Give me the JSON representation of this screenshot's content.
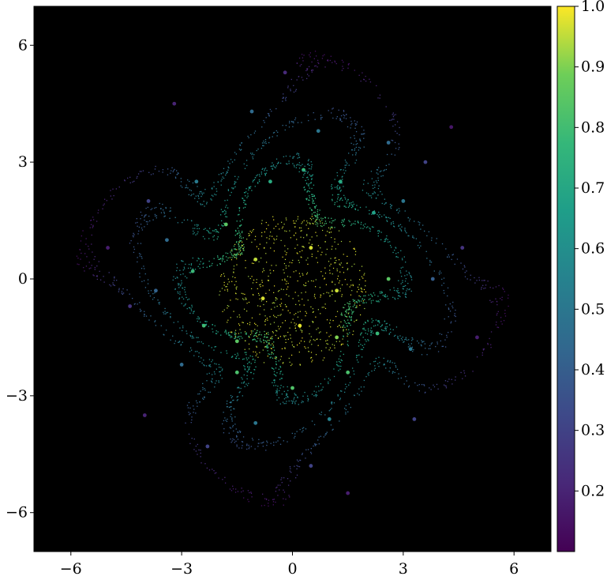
{
  "chart_data": {
    "type": "scatter",
    "title": "",
    "xlabel": "",
    "ylabel": "",
    "xlim": [
      -7,
      7
    ],
    "ylim": [
      -7,
      7
    ],
    "grid": false,
    "background_color": "#000000",
    "colormap": "viridis",
    "colorbar": {
      "min": 0.1,
      "max": 1.0,
      "ticks": [
        0.2,
        0.3,
        0.4,
        0.5,
        0.6,
        0.7,
        0.8,
        0.9,
        1.0
      ],
      "tick_labels": [
        "0.2",
        "0.3",
        "0.4",
        "0.5",
        "0.6",
        "0.7",
        "0.8",
        "0.9",
        "1.0"
      ]
    },
    "x_ticks": [
      -6,
      -3,
      0,
      3,
      6
    ],
    "x_tick_labels": [
      "−6",
      "−3",
      "0",
      "3",
      "6"
    ],
    "y_ticks": [
      -6,
      -3,
      0,
      3,
      6
    ],
    "y_tick_labels": [
      "−6",
      "−3",
      "0",
      "3",
      "6"
    ],
    "series": [
      {
        "points": [
          {
            "x": -0.6,
            "y": 2.5,
            "c": 0.72
          },
          {
            "x": 0.3,
            "y": 2.8,
            "c": 0.78
          },
          {
            "x": 1.3,
            "y": 2.5,
            "c": 0.72
          },
          {
            "x": 2.2,
            "y": 1.7,
            "c": 0.68
          },
          {
            "x": 2.6,
            "y": 0.0,
            "c": 0.85
          },
          {
            "x": 2.3,
            "y": -1.4,
            "c": 0.78
          },
          {
            "x": 1.5,
            "y": -2.4,
            "c": 0.82
          },
          {
            "x": 0.0,
            "y": -2.8,
            "c": 0.83
          },
          {
            "x": -1.5,
            "y": -2.4,
            "c": 0.82
          },
          {
            "x": -2.4,
            "y": -1.2,
            "c": 0.8
          },
          {
            "x": -2.7,
            "y": 0.2,
            "c": 0.8
          },
          {
            "x": -1.8,
            "y": 1.4,
            "c": 0.85
          },
          {
            "x": -1.0,
            "y": 0.5,
            "c": 0.95
          },
          {
            "x": 0.5,
            "y": 0.8,
            "c": 0.97
          },
          {
            "x": 1.2,
            "y": -0.3,
            "c": 0.96
          },
          {
            "x": 0.2,
            "y": -1.2,
            "c": 0.98
          },
          {
            "x": -0.8,
            "y": -0.5,
            "c": 0.97
          },
          {
            "x": -1.5,
            "y": -1.6,
            "c": 0.85
          },
          {
            "x": 1.2,
            "y": -1.5,
            "c": 0.9
          },
          {
            "x": 2.6,
            "y": 3.5,
            "c": 0.45
          },
          {
            "x": -1.1,
            "y": 4.3,
            "c": 0.45
          },
          {
            "x": -2.6,
            "y": 2.5,
            "c": 0.52
          },
          {
            "x": -3.4,
            "y": 1.0,
            "c": 0.45
          },
          {
            "x": -3.7,
            "y": -0.3,
            "c": 0.42
          },
          {
            "x": -3.0,
            "y": -2.2,
            "c": 0.45
          },
          {
            "x": -1.0,
            "y": -3.7,
            "c": 0.5
          },
          {
            "x": 1.0,
            "y": -3.6,
            "c": 0.55
          },
          {
            "x": 3.2,
            "y": -1.8,
            "c": 0.5
          },
          {
            "x": 3.8,
            "y": 0.0,
            "c": 0.4
          },
          {
            "x": 3.0,
            "y": 2.0,
            "c": 0.5
          },
          {
            "x": 0.7,
            "y": 3.8,
            "c": 0.5
          },
          {
            "x": -3.9,
            "y": 2.0,
            "c": 0.3
          },
          {
            "x": -4.4,
            "y": -0.7,
            "c": 0.25
          },
          {
            "x": -2.3,
            "y": -4.3,
            "c": 0.3
          },
          {
            "x": 0.5,
            "y": -4.8,
            "c": 0.3
          },
          {
            "x": 3.3,
            "y": -3.6,
            "c": 0.3
          },
          {
            "x": 4.6,
            "y": 0.8,
            "c": 0.25
          },
          {
            "x": 3.6,
            "y": 3.0,
            "c": 0.3
          },
          {
            "x": -0.2,
            "y": 5.3,
            "c": 0.22
          },
          {
            "x": -3.2,
            "y": 4.5,
            "c": 0.2
          },
          {
            "x": -5.0,
            "y": 0.8,
            "c": 0.18
          },
          {
            "x": -4.0,
            "y": -3.5,
            "c": 0.2
          },
          {
            "x": 1.5,
            "y": -5.5,
            "c": 0.18
          },
          {
            "x": 5.0,
            "y": -1.5,
            "c": 0.18
          },
          {
            "x": 4.3,
            "y": 3.9,
            "c": 0.16
          }
        ]
      }
    ]
  }
}
